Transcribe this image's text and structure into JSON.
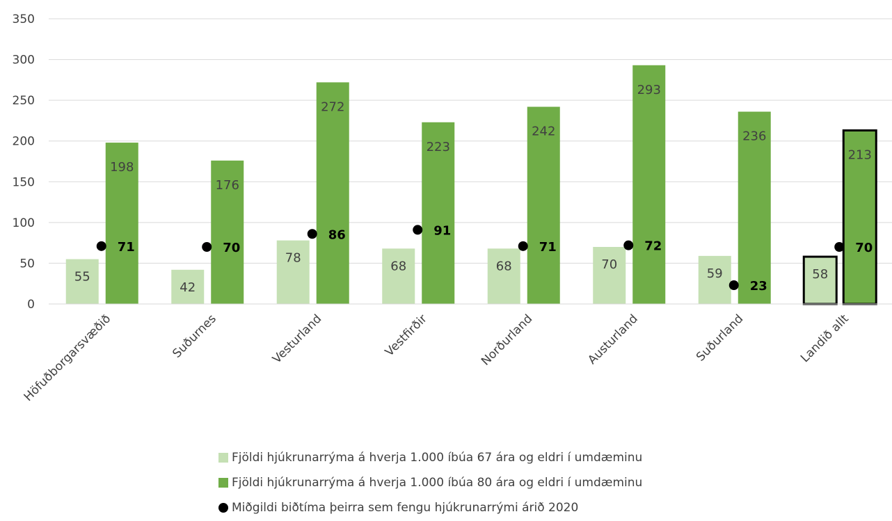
{
  "chart_data": {
    "type": "bar",
    "categories": [
      "Höfuðborgarsvæðið",
      "Suðurnes",
      "Vesturland",
      "Vestfirðir",
      "Norðurland",
      "Austurland",
      "Suðurland",
      "Landið allt"
    ],
    "series": [
      {
        "name": "Fjöldi hjúkrunarrýma á hverja 1.000 íbúa 67 ára og eldri í umdæminu",
        "kind": "bar",
        "color": "#c5e0b4",
        "values": [
          55,
          42,
          78,
          68,
          68,
          70,
          59,
          58
        ]
      },
      {
        "name": "Fjöldi hjúkrunarrýma á hverja 1.000 íbúa 80 ára og eldri í umdæminu",
        "kind": "bar",
        "color": "#70ad47",
        "values": [
          198,
          176,
          272,
          223,
          242,
          293,
          236,
          213
        ]
      },
      {
        "name": "Miðgildi biðtíma þeirra sem fengu hjúkrunarrými árið 2020",
        "kind": "scatter",
        "color": "#000000",
        "values": [
          71,
          70,
          86,
          91,
          71,
          72,
          23,
          70
        ]
      }
    ],
    "ylim": [
      0,
      350
    ],
    "yticks": [
      0,
      50,
      100,
      150,
      200,
      250,
      300,
      350
    ],
    "gridlines": true,
    "legend_position": "bottom",
    "highlighted_category": "Landið allt"
  }
}
